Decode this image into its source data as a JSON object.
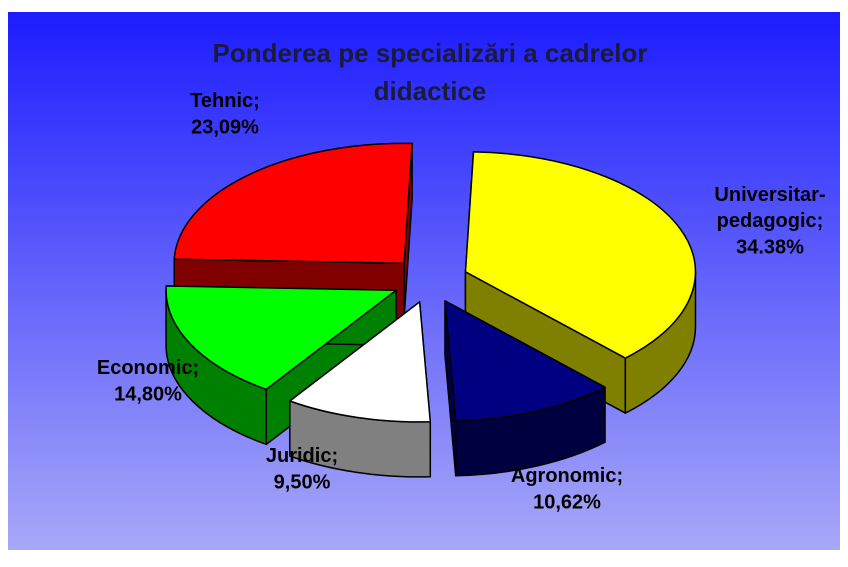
{
  "chart_data": {
    "type": "pie3d",
    "title": "Ponderea pe specializări a cadrelor didactice",
    "categories": [
      "Universitar-pedagogic;",
      "Agronomic;",
      "Juridic;",
      "Economic;",
      "Tehnic;"
    ],
    "values": [
      34.38,
      10.62,
      9.5,
      14.8,
      23.09
    ],
    "value_labels": [
      "34.38%",
      "10,62%",
      "9,50%",
      "14,80%",
      "23,09%"
    ],
    "colors": [
      "#ffff00",
      "#000080",
      "#ffffff",
      "#00ff00",
      "#ff0000"
    ],
    "exploded": true
  }
}
